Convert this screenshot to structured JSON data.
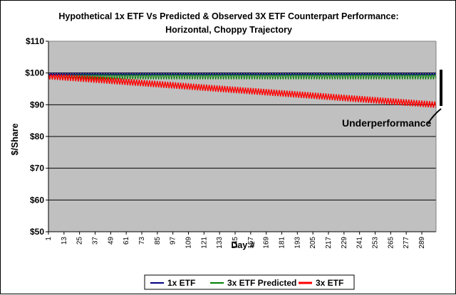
{
  "chart_data": {
    "type": "line",
    "title_line1": "Hypothetical 1x ETF Vs Predicted & Observed 3X ETF Counterpart Performance:",
    "title_line2": "Horizontal, Choppy Trajectory",
    "xlabel": "Day #",
    "ylabel": "$/Share",
    "ylim": [
      50,
      110
    ],
    "yticks": [
      50,
      60,
      70,
      80,
      90,
      100,
      110
    ],
    "ytick_labels": [
      "$50",
      "$60",
      "$70",
      "$80",
      "$90",
      "$100",
      "$110"
    ],
    "xlim": [
      1,
      300
    ],
    "xticks": [
      1,
      13,
      25,
      37,
      49,
      61,
      73,
      85,
      97,
      109,
      121,
      133,
      145,
      157,
      169,
      181,
      193,
      205,
      217,
      229,
      241,
      253,
      265,
      277,
      289
    ],
    "grid": "horizontal",
    "plot_background": "#c0c0c0",
    "legend_position": "bottom",
    "series": [
      {
        "name": "1x ETF",
        "color": "#000080",
        "pattern": "zigzag",
        "low_start": 99.3,
        "low_end": 99.3,
        "high_start": 100.0,
        "high_end": 100.0
      },
      {
        "name": "3x ETF Predicted",
        "color": "#008000",
        "pattern": "zigzag",
        "low_start": 98.0,
        "low_end": 98.0,
        "high_start": 100.0,
        "high_end": 100.0
      },
      {
        "name": "3x ETF",
        "color": "#ff0000",
        "pattern": "zigzag",
        "low_start": 98.0,
        "low_end": 89.0,
        "high_start": 100.0,
        "high_end": 91.0
      }
    ],
    "annotation": "Underperformance"
  }
}
